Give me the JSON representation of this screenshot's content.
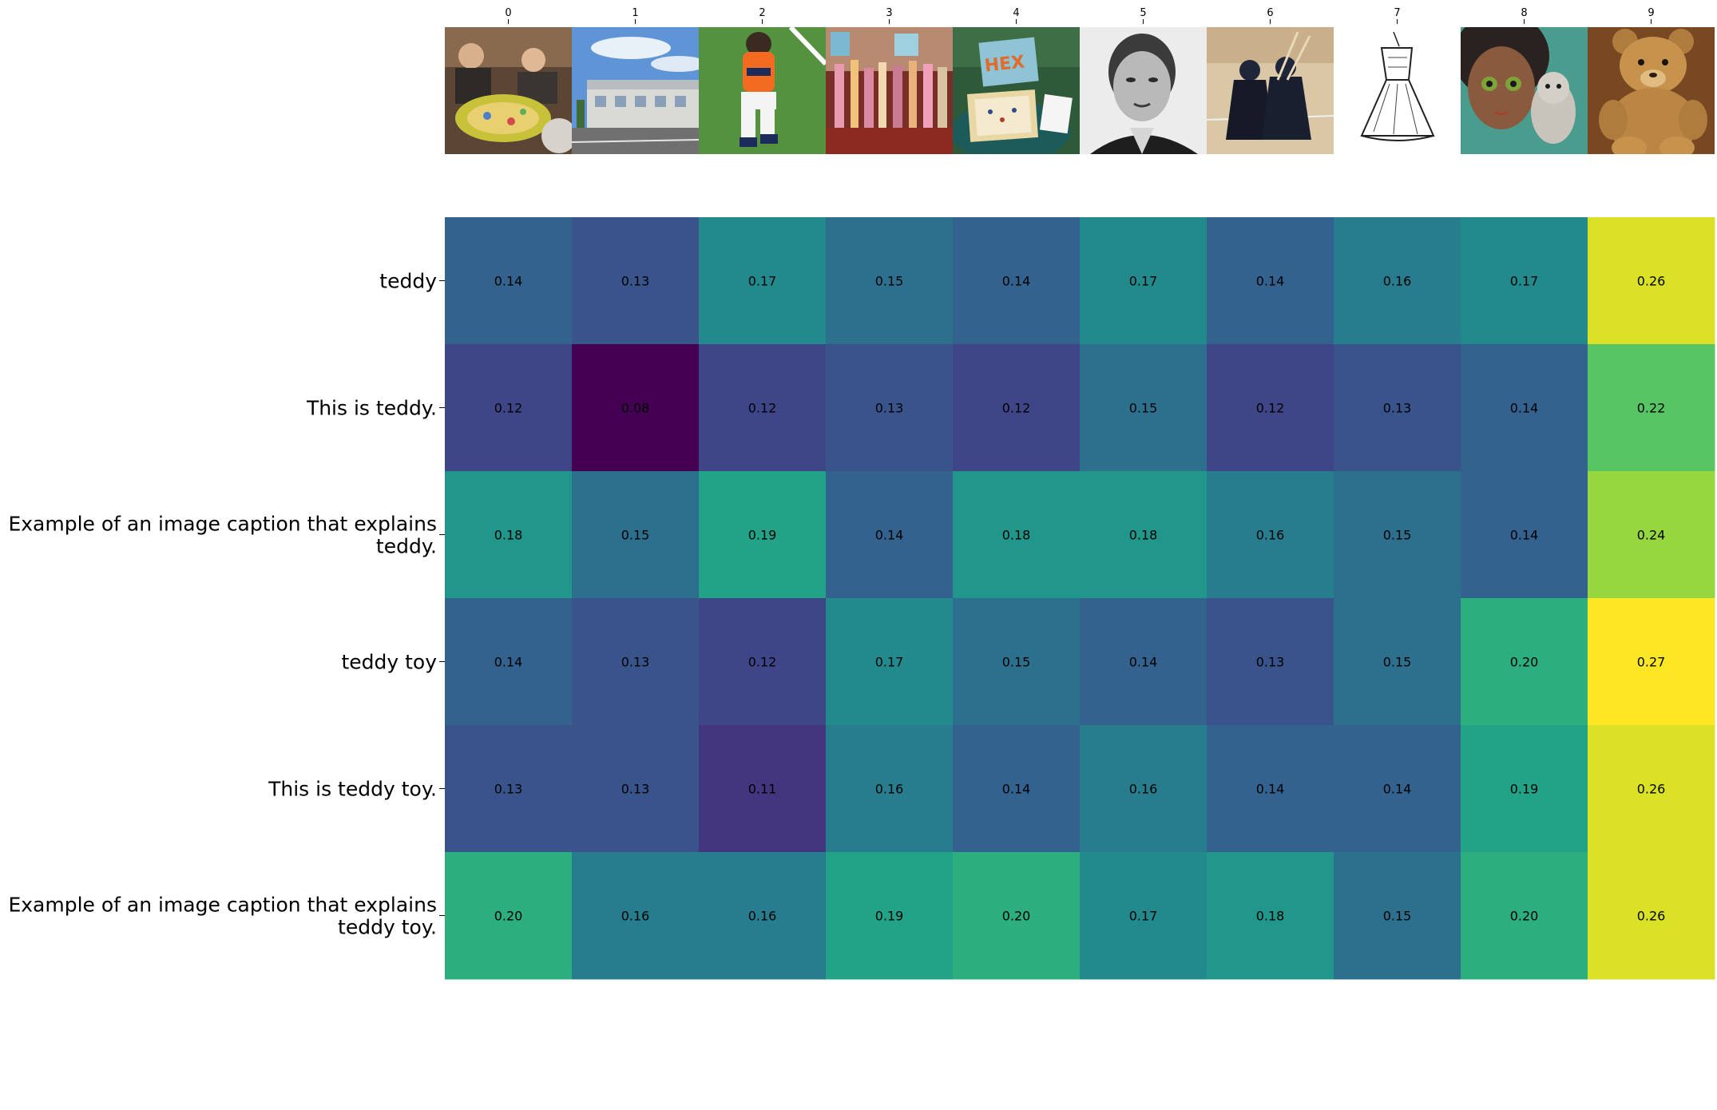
{
  "chart_data": {
    "type": "heatmap",
    "title": "",
    "xlabel": "",
    "ylabel": "",
    "colormap": "viridis",
    "color_range": [
      0.08,
      0.27
    ],
    "x_tick_labels": [
      "0",
      "1",
      "2",
      "3",
      "4",
      "5",
      "6",
      "7",
      "8",
      "9"
    ],
    "images": [
      {
        "id": "0",
        "subject": "people playing a board game",
        "icon": "board-game-photo"
      },
      {
        "id": "1",
        "subject": "building under blue sky",
        "icon": "building-photo"
      },
      {
        "id": "2",
        "subject": "football player",
        "icon": "football-player-photo"
      },
      {
        "id": "3",
        "subject": "shop shelves with bottles",
        "icon": "shop-display-photo"
      },
      {
        "id": "4",
        "subject": "HEX board game box",
        "icon": "hex-game-photo",
        "text": "HEX"
      },
      {
        "id": "5",
        "subject": "black and white portrait",
        "icon": "portrait-photo"
      },
      {
        "id": "6",
        "subject": "kendo fighters",
        "icon": "kendo-photo"
      },
      {
        "id": "7",
        "subject": "dress sketch",
        "icon": "dress-sketch"
      },
      {
        "id": "8",
        "subject": "doll with plush toy",
        "icon": "doll-photo"
      },
      {
        "id": "9",
        "subject": "teddy bear",
        "icon": "teddy-bear-photo"
      }
    ],
    "y_labels": [
      [
        "teddy"
      ],
      [
        "This is teddy."
      ],
      [
        "Example of an image caption that explains",
        "teddy."
      ],
      [
        "teddy toy"
      ],
      [
        "This is teddy toy."
      ],
      [
        "Example of an image caption that explains",
        "teddy toy."
      ]
    ],
    "values": [
      [
        0.14,
        0.13,
        0.17,
        0.15,
        0.14,
        0.17,
        0.14,
        0.16,
        0.17,
        0.26
      ],
      [
        0.12,
        0.08,
        0.12,
        0.13,
        0.12,
        0.15,
        0.12,
        0.13,
        0.14,
        0.22
      ],
      [
        0.18,
        0.15,
        0.19,
        0.14,
        0.18,
        0.18,
        0.16,
        0.15,
        0.14,
        0.24
      ],
      [
        0.14,
        0.13,
        0.12,
        0.17,
        0.15,
        0.14,
        0.13,
        0.15,
        0.2,
        0.27
      ],
      [
        0.13,
        0.13,
        0.11,
        0.16,
        0.14,
        0.16,
        0.14,
        0.14,
        0.19,
        0.26
      ],
      [
        0.2,
        0.16,
        0.16,
        0.19,
        0.2,
        0.17,
        0.18,
        0.15,
        0.2,
        0.26
      ]
    ],
    "value_format": "2 decimals",
    "annotations": "cell values printed in black"
  }
}
